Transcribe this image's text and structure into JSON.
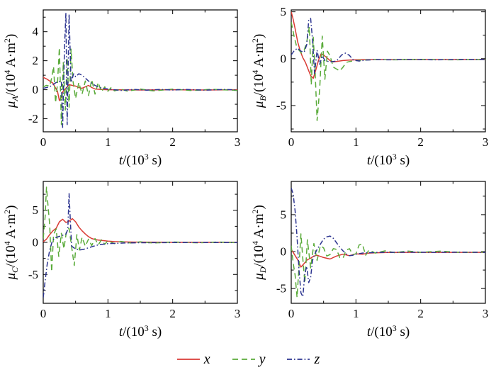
{
  "colors": {
    "x": "#d93a34",
    "y": "#5aab3a",
    "z": "#2c3490",
    "axis": "#000000"
  },
  "legend": {
    "items": [
      {
        "label": "x",
        "series": "x",
        "style": "solid"
      },
      {
        "label": "y",
        "series": "y",
        "style": "dashed"
      },
      {
        "label": "z",
        "series": "z",
        "style": "dashdot"
      }
    ]
  },
  "chart_data": [
    {
      "type": "line",
      "name": "mu-A",
      "ylabel_segments": [
        {
          "t": "μ",
          "i": true
        },
        {
          "t": "A",
          "i": true,
          "sub": true
        },
        {
          "t": "/(10"
        },
        {
          "t": "4",
          "sup": true
        },
        {
          "t": " A·m"
        },
        {
          "t": "2",
          "sup": true
        },
        {
          "t": ")"
        }
      ],
      "xlabel_segments": [
        {
          "t": "t",
          "i": true
        },
        {
          "t": "/(10"
        },
        {
          "t": "3",
          "sup": true
        },
        {
          "t": " s)"
        }
      ],
      "xlim": [
        0,
        3
      ],
      "ylim": [
        -2.9,
        5.5
      ],
      "xticks": [
        0,
        1,
        2,
        3
      ],
      "xticks_minor": [
        0.5,
        1.5,
        2.5
      ],
      "yticks": [
        -2,
        0,
        2,
        4
      ],
      "yticks_minor": [
        -1,
        1,
        3,
        5
      ],
      "series": [
        {
          "name": "x",
          "style": "solid",
          "x": [
            0,
            0.05,
            0.1,
            0.15,
            0.18,
            0.2,
            0.22,
            0.25,
            0.28,
            0.3,
            0.35,
            0.4,
            0.45,
            0.5,
            0.55,
            0.6,
            0.65,
            0.7,
            0.75,
            0.8,
            0.9,
            1.0,
            1.5,
            2.0,
            2.5,
            3.0
          ],
          "y": [
            0.85,
            0.75,
            0.6,
            0.45,
            0.2,
            0.05,
            -0.1,
            -0.75,
            -0.5,
            -0.15,
            0.1,
            0.35,
            0.3,
            0.25,
            0.15,
            0.1,
            0.2,
            0.3,
            0.15,
            0.05,
            0.02,
            0,
            -0.02,
            0,
            -0.02,
            0
          ]
        },
        {
          "name": "y",
          "style": "dashed",
          "x": [
            0,
            0.05,
            0.1,
            0.13,
            0.16,
            0.19,
            0.22,
            0.25,
            0.28,
            0.31,
            0.34,
            0.37,
            0.4,
            0.43,
            0.46,
            0.5,
            0.55,
            0.6,
            0.65,
            0.7,
            0.75,
            0.8,
            0.85,
            0.9,
            0.95,
            1.0,
            1.05,
            1.1,
            1.2,
            1.3,
            1.5,
            1.7,
            2.0,
            2.3,
            2.6,
            3.0
          ],
          "y": [
            0.2,
            0.3,
            0.25,
            0.8,
            1.6,
            -0.9,
            0.4,
            2.9,
            -2.4,
            1.9,
            -1.4,
            2.2,
            -1.2,
            2.8,
            0.6,
            -0.6,
            0.5,
            -0.3,
            0.6,
            -0.4,
            0.7,
            -0.3,
            0.5,
            -0.15,
            0.2,
            -0.1,
            0.15,
            -0.08,
            0.05,
            -0.1,
            0.05,
            -0.08,
            0.04,
            -0.06,
            0.03,
            -0.05
          ]
        },
        {
          "name": "z",
          "style": "dashdot",
          "x": [
            0,
            0.1,
            0.2,
            0.28,
            0.3,
            0.33,
            0.35,
            0.37,
            0.4,
            0.43,
            0.47,
            0.5,
            0.55,
            0.6,
            0.65,
            0.7,
            0.75,
            0.8,
            0.85,
            0.9,
            1.0,
            1.1,
            1.2,
            1.4,
            1.6,
            1.8,
            2.0,
            2.2,
            2.5,
            2.8,
            3.0
          ],
          "y": [
            0.1,
            0.2,
            0.5,
            0.6,
            -2.6,
            3.0,
            5.3,
            -2.4,
            5.2,
            0.5,
            1.1,
            0.9,
            1.1,
            1.0,
            0.8,
            0.6,
            0.45,
            0.3,
            0.2,
            0.12,
            0.05,
            0,
            -0.05,
            0.02,
            -0.03,
            0.02,
            -0.02,
            0.02,
            -0.03,
            0.02,
            -0.02
          ]
        }
      ]
    },
    {
      "type": "line",
      "name": "mu-B",
      "ylabel_segments": [
        {
          "t": "μ",
          "i": true
        },
        {
          "t": "B",
          "i": true,
          "sub": true
        },
        {
          "t": "/(10"
        },
        {
          "t": "4",
          "sup": true
        },
        {
          "t": " A·m"
        },
        {
          "t": "2",
          "sup": true
        },
        {
          "t": ")"
        }
      ],
      "xlabel_segments": [
        {
          "t": "t",
          "i": true
        },
        {
          "t": "/(10"
        },
        {
          "t": "3",
          "sup": true
        },
        {
          "t": " s)"
        }
      ],
      "xlim": [
        0,
        3
      ],
      "ylim": [
        -7.8,
        5.2
      ],
      "xticks": [
        0,
        1,
        2,
        3
      ],
      "xticks_minor": [
        0.5,
        1.5,
        2.5
      ],
      "yticks": [
        -5,
        0,
        5
      ],
      "yticks_minor": [
        -7.5,
        -2.5,
        2.5
      ],
      "series": [
        {
          "name": "x",
          "style": "solid",
          "x": [
            0,
            0.03,
            0.06,
            0.1,
            0.14,
            0.18,
            0.22,
            0.26,
            0.3,
            0.34,
            0.38,
            0.42,
            0.46,
            0.5,
            0.55,
            0.6,
            0.65,
            0.7,
            0.8,
            0.9,
            1.0,
            1.2,
            1.5,
            2.0,
            2.5,
            3.0
          ],
          "y": [
            5.0,
            4.2,
            3.2,
            1.8,
            0.8,
            0.1,
            -0.4,
            -1.1,
            -1.8,
            -2.1,
            -1.2,
            -0.2,
            0.5,
            0.4,
            0.1,
            -0.2,
            -0.35,
            -0.3,
            -0.2,
            -0.15,
            -0.12,
            -0.1,
            -0.1,
            -0.1,
            -0.1,
            -0.1
          ]
        },
        {
          "name": "y",
          "style": "dashed",
          "x": [
            0,
            0.04,
            0.08,
            0.12,
            0.16,
            0.2,
            0.24,
            0.28,
            0.31,
            0.34,
            0.37,
            0.4,
            0.44,
            0.48,
            0.52,
            0.56,
            0.6,
            0.65,
            0.7,
            0.75,
            0.8,
            0.85,
            0.9,
            1.0,
            1.1,
            1.3,
            1.6,
            2.0,
            2.5,
            3.0
          ],
          "y": [
            3.9,
            2.5,
            1.4,
            0.9,
            0.6,
            0.9,
            1.8,
            3.4,
            -2.8,
            2.3,
            -1.5,
            -6.6,
            -3.2,
            2.4,
            -2.2,
            0.8,
            0.3,
            -0.9,
            -1.1,
            -1.3,
            -0.9,
            -0.4,
            -0.3,
            -0.2,
            -0.15,
            -0.1,
            -0.12,
            -0.08,
            -0.12,
            -0.1
          ]
        },
        {
          "name": "z",
          "style": "dashdot",
          "x": [
            0,
            0.05,
            0.1,
            0.15,
            0.2,
            0.24,
            0.27,
            0.3,
            0.33,
            0.36,
            0.4,
            0.44,
            0.48,
            0.52,
            0.6,
            0.7,
            0.78,
            0.84,
            0.9,
            0.96,
            1.05,
            1.15,
            1.3,
            1.5,
            1.8,
            2.2,
            2.6,
            3.0
          ],
          "y": [
            0.4,
            0.9,
            1.1,
            0.8,
            0.7,
            1.5,
            4.1,
            4.3,
            2.0,
            -1.6,
            0.9,
            -0.6,
            0.3,
            -0.2,
            -0.35,
            -0.25,
            0.4,
            0.6,
            0.35,
            -0.15,
            -0.25,
            -0.15,
            -0.1,
            -0.12,
            -0.08,
            -0.12,
            -0.08,
            -0.1
          ]
        }
      ]
    },
    {
      "type": "line",
      "name": "mu-C",
      "ylabel_segments": [
        {
          "t": "μ",
          "i": true
        },
        {
          "t": "C",
          "i": true,
          "sub": true
        },
        {
          "t": "/(10"
        },
        {
          "t": "4",
          "sup": true
        },
        {
          "t": " A·m"
        },
        {
          "t": "2",
          "sup": true
        },
        {
          "t": ")"
        }
      ],
      "xlabel_segments": [
        {
          "t": "t",
          "i": true
        },
        {
          "t": "/(10"
        },
        {
          "t": "3",
          "sup": true
        },
        {
          "t": " s)"
        }
      ],
      "xlim": [
        0,
        3
      ],
      "ylim": [
        -9.5,
        9.5
      ],
      "xticks": [
        0,
        1,
        2,
        3
      ],
      "xticks_minor": [
        0.5,
        1.5,
        2.5
      ],
      "yticks": [
        -5,
        0,
        5
      ],
      "yticks_minor": [
        -7.5,
        -2.5,
        2.5,
        7.5
      ],
      "series": [
        {
          "name": "x",
          "style": "solid",
          "x": [
            0,
            0.05,
            0.1,
            0.15,
            0.2,
            0.25,
            0.3,
            0.35,
            0.4,
            0.45,
            0.5,
            0.55,
            0.6,
            0.65,
            0.7,
            0.75,
            0.8,
            0.85,
            0.9,
            1.0,
            1.1,
            1.2,
            1.4,
            1.7,
            2.0,
            2.5,
            3.0
          ],
          "y": [
            0.1,
            0.5,
            1.2,
            1.8,
            2.2,
            3.2,
            3.6,
            3.1,
            3.3,
            3.7,
            3.2,
            2.4,
            1.8,
            1.3,
            0.9,
            0.6,
            0.45,
            0.35,
            0.3,
            0.2,
            0.12,
            0.08,
            0.04,
            0.02,
            0,
            0,
            0
          ]
        },
        {
          "name": "y",
          "style": "dashed",
          "x": [
            0,
            0.03,
            0.05,
            0.08,
            0.1,
            0.13,
            0.16,
            0.2,
            0.24,
            0.28,
            0.32,
            0.36,
            0.4,
            0.44,
            0.48,
            0.52,
            0.56,
            0.6,
            0.65,
            0.7,
            0.75,
            0.8,
            0.85,
            0.9,
            0.95,
            1.0,
            1.1,
            1.2,
            1.35,
            1.5,
            1.7,
            2.0,
            2.4,
            2.7,
            3.0
          ],
          "y": [
            0.6,
            4.0,
            8.6,
            5.0,
            2.8,
            -4.6,
            1.2,
            2.1,
            -2.2,
            1.4,
            -1.0,
            1.8,
            2.2,
            -0.8,
            -3.6,
            1.2,
            -1.2,
            0.8,
            -0.6,
            0.5,
            -0.5,
            0.6,
            -0.4,
            0.4,
            -0.3,
            0.25,
            -0.2,
            0.15,
            -0.1,
            0.08,
            -0.1,
            0.05,
            -0.08,
            0.05,
            -0.05
          ]
        },
        {
          "name": "z",
          "style": "dashdot",
          "x": [
            0,
            0.03,
            0.06,
            0.1,
            0.14,
            0.18,
            0.24,
            0.3,
            0.35,
            0.38,
            0.4,
            0.42,
            0.44,
            0.48,
            0.55,
            0.62,
            0.7,
            0.78,
            0.85,
            0.92,
            1.0,
            1.1,
            1.25,
            1.5,
            2.0,
            2.5,
            3.0
          ],
          "y": [
            -8.6,
            -6.0,
            -3.5,
            -1.2,
            0.2,
            0.7,
            0.9,
            1.1,
            1.3,
            2.0,
            7.6,
            3.0,
            -0.6,
            -0.9,
            -1.2,
            -1.1,
            -0.85,
            -0.6,
            -0.4,
            -0.3,
            -0.2,
            -0.15,
            -0.1,
            -0.05,
            -0.03,
            -0.02,
            -0.02
          ]
        }
      ]
    },
    {
      "type": "line",
      "name": "mu-D",
      "ylabel_segments": [
        {
          "t": "μ",
          "i": true
        },
        {
          "t": "D",
          "i": true,
          "sub": true
        },
        {
          "t": "/(10"
        },
        {
          "t": "4",
          "sup": true
        },
        {
          "t": " A·m"
        },
        {
          "t": "2",
          "sup": true
        },
        {
          "t": ")"
        }
      ],
      "xlabel_segments": [
        {
          "t": "t",
          "i": true
        },
        {
          "t": "/(10"
        },
        {
          "t": "3",
          "sup": true
        },
        {
          "t": " s)"
        }
      ],
      "xlim": [
        0,
        3
      ],
      "ylim": [
        -7.0,
        9.5
      ],
      "xticks": [
        0,
        1,
        2,
        3
      ],
      "xticks_minor": [
        0.5,
        1.5,
        2.5
      ],
      "yticks": [
        -5,
        0,
        5
      ],
      "yticks_minor": [
        -2.5,
        2.5,
        7.5
      ],
      "series": [
        {
          "name": "x",
          "style": "solid",
          "x": [
            0,
            0.05,
            0.1,
            0.15,
            0.2,
            0.25,
            0.3,
            0.35,
            0.4,
            0.5,
            0.6,
            0.7,
            0.8,
            0.9,
            1.0,
            1.1,
            1.2,
            1.35,
            1.5,
            1.8,
            2.2,
            2.6,
            3.0
          ],
          "y": [
            0.3,
            -0.4,
            -1.1,
            -2.1,
            -1.6,
            -1.1,
            -0.9,
            -0.6,
            -0.5,
            -0.8,
            -1.0,
            -0.6,
            -0.35,
            -0.55,
            -0.3,
            -0.35,
            -0.2,
            -0.15,
            -0.12,
            -0.1,
            -0.1,
            -0.1,
            -0.1
          ]
        },
        {
          "name": "y",
          "style": "dashed",
          "x": [
            0,
            0.03,
            0.06,
            0.09,
            0.12,
            0.15,
            0.18,
            0.21,
            0.25,
            0.3,
            0.35,
            0.4,
            0.45,
            0.5,
            0.55,
            0.6,
            0.65,
            0.7,
            0.75,
            0.8,
            0.85,
            0.9,
            0.95,
            1.0,
            1.05,
            1.1,
            1.15,
            1.2,
            1.3,
            1.45,
            1.6,
            1.8,
            2.0,
            2.3,
            2.6,
            3.0
          ],
          "y": [
            0.8,
            -1.5,
            -3.2,
            -6.2,
            -2.0,
            2.4,
            -1.0,
            -4.2,
            1.6,
            -2.2,
            1.1,
            -1.2,
            0.8,
            0.5,
            -0.6,
            -0.4,
            0.4,
            0.3,
            -0.8,
            -0.9,
            0.2,
            0.4,
            -0.4,
            -0.3,
            0.9,
            1.0,
            -0.5,
            0.2,
            -0.2,
            0.1,
            -0.15,
            0.08,
            -0.1,
            0.06,
            -0.1,
            -0.08
          ]
        },
        {
          "name": "z",
          "style": "dashdot",
          "x": [
            0,
            0.03,
            0.06,
            0.09,
            0.12,
            0.15,
            0.18,
            0.21,
            0.24,
            0.27,
            0.3,
            0.33,
            0.36,
            0.4,
            0.45,
            0.5,
            0.55,
            0.6,
            0.65,
            0.7,
            0.75,
            0.8,
            0.85,
            0.9,
            0.95,
            1.0,
            1.1,
            1.2,
            1.35,
            1.5,
            1.8,
            2.2,
            2.6,
            3.0
          ],
          "y": [
            8.6,
            7.8,
            5.5,
            2.0,
            -2.5,
            -5.6,
            -6.1,
            -3.0,
            -2.0,
            -4.2,
            -3.5,
            -1.2,
            -0.4,
            0.3,
            1.0,
            1.7,
            2.0,
            2.1,
            1.8,
            1.2,
            0.6,
            0.1,
            -0.3,
            -0.55,
            -0.5,
            -0.35,
            -0.2,
            -0.15,
            -0.1,
            -0.1,
            -0.08,
            -0.1,
            -0.08,
            -0.1
          ]
        }
      ]
    }
  ]
}
